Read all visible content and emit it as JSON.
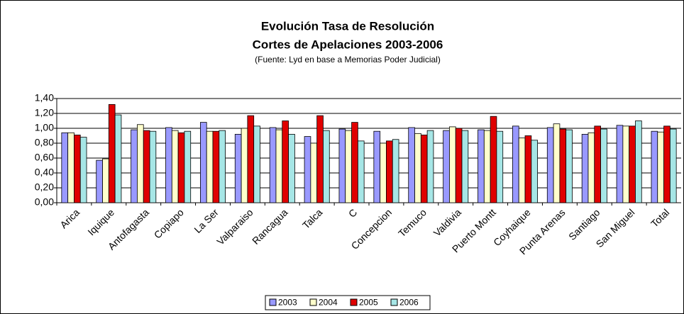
{
  "chart_data": {
    "type": "bar",
    "title": "Evolución Tasa de Resolución",
    "subtitle": "Cortes de Apelaciones 2003-2006",
    "source": "(Fuente: Lyd en base a Memorias Poder Judicial)",
    "categories": [
      "Arica",
      "Iquique",
      "Antofagasta",
      "Copiapo",
      "La Ser",
      "Valparaiso",
      "Rancagua",
      "Talca",
      "C",
      "Concepcion",
      "Temuco",
      "Valdivia",
      "Puerto Montt",
      "Coyhaique",
      "Punta Arenas",
      "Santiago",
      "San Miguel",
      "Total"
    ],
    "series": [
      {
        "name": "2003",
        "color": "#9999ff",
        "values": [
          0.94,
          0.57,
          0.98,
          1.01,
          1.08,
          0.92,
          1.01,
          0.89,
          0.99,
          0.96,
          1.01,
          0.97,
          0.98,
          1.03,
          1.01,
          0.92,
          1.04,
          0.96
        ]
      },
      {
        "name": "2004",
        "color": "#ffffcc",
        "values": [
          0.94,
          0.59,
          1.05,
          0.97,
          0.96,
          1.0,
          0.98,
          0.8,
          0.97,
          0.8,
          0.93,
          1.02,
          0.97,
          0.87,
          1.06,
          0.94,
          1.03,
          0.95
        ]
      },
      {
        "name": "2005",
        "color": "#e00000",
        "values": [
          0.91,
          1.32,
          0.97,
          0.94,
          0.96,
          1.17,
          1.1,
          1.17,
          1.08,
          0.83,
          0.91,
          1.0,
          1.16,
          0.9,
          0.99,
          1.03,
          1.03,
          1.03
        ]
      },
      {
        "name": "2006",
        "color": "#a6e6e6",
        "values": [
          0.88,
          1.18,
          0.96,
          0.96,
          0.97,
          1.03,
          0.92,
          0.97,
          0.83,
          0.85,
          0.97,
          0.97,
          0.96,
          0.84,
          0.98,
          0.99,
          1.1,
          0.99
        ]
      }
    ],
    "ylim": [
      0,
      1.4
    ],
    "yticks": [
      {
        "value": 0,
        "label": "0,00"
      },
      {
        "value": 0.2,
        "label": "0,20"
      },
      {
        "value": 0.4,
        "label": "0,40"
      },
      {
        "value": 0.6,
        "label": "0,60"
      },
      {
        "value": 0.8,
        "label": "0,80"
      },
      {
        "value": 1,
        "label": "1,00"
      },
      {
        "value": 1.2,
        "label": "1,20"
      },
      {
        "value": 1.4,
        "label": "1,40"
      }
    ],
    "grid": true,
    "legend": "bottom"
  }
}
